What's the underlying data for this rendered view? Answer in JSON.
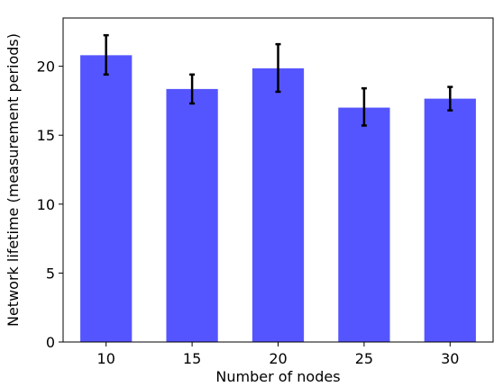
{
  "chart_data": {
    "type": "bar",
    "categories": [
      "10",
      "15",
      "20",
      "25",
      "30"
    ],
    "values": [
      20.8,
      18.35,
      19.85,
      17.0,
      17.65
    ],
    "error_low": [
      19.4,
      17.3,
      18.15,
      15.7,
      16.8
    ],
    "error_high": [
      22.25,
      19.4,
      21.6,
      18.4,
      18.5
    ],
    "xlabel": "Number of nodes",
    "ylabel": "Network lifetime (measurement periods)",
    "ylim": [
      0,
      23.5
    ],
    "yticks": [
      0,
      5,
      10,
      15,
      20
    ],
    "grid": false,
    "bar_color": "#5555ff",
    "error_color": "#000000"
  }
}
